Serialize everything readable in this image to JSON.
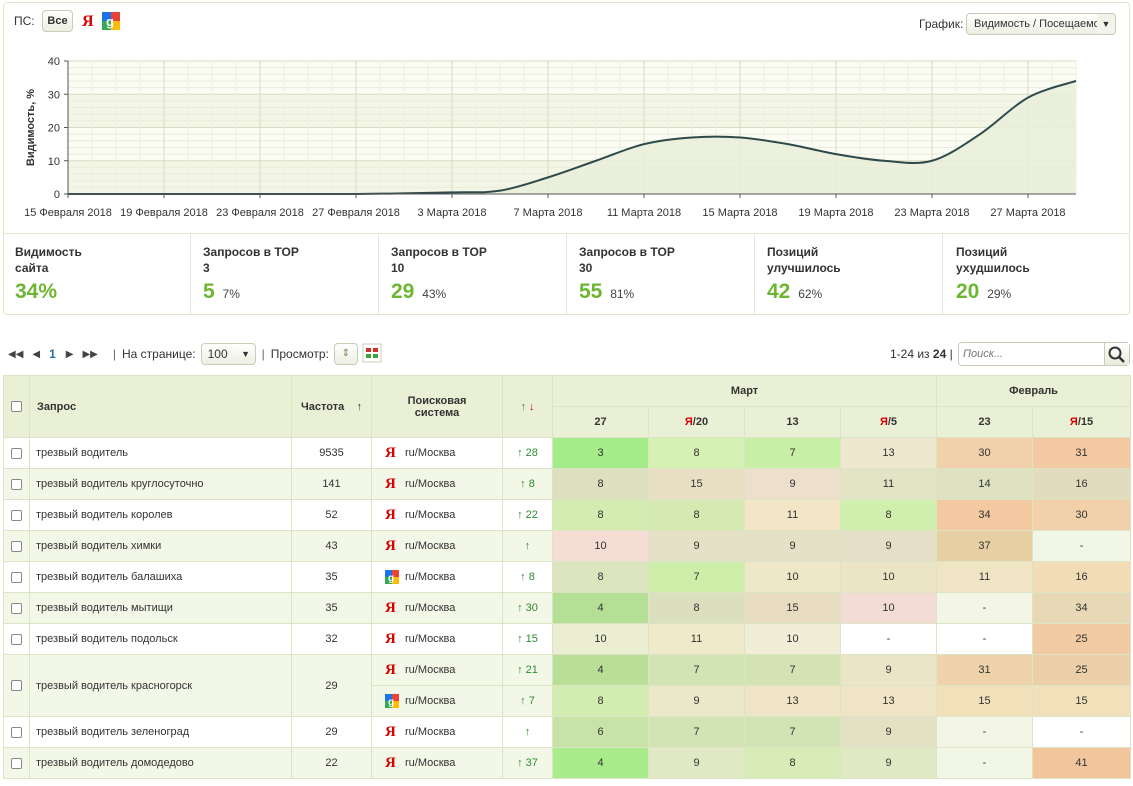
{
  "header": {
    "ps_label": "ПС:",
    "ps_all": "Все",
    "graph_label": "График:",
    "graph_value": "Видимость / Посещаемо"
  },
  "chart_data": {
    "type": "area",
    "ylabel": "Видимость, %",
    "ylim": [
      0,
      40
    ],
    "yticks": [
      "0",
      "10",
      "20",
      "30",
      "40"
    ],
    "xticks": [
      "15 Февраля 2018",
      "19 Февраля 2018",
      "23 Февраля 2018",
      "27 Февраля 2018",
      "3 Марта 2018",
      "7 Марта 2018",
      "11 Марта 2018",
      "15 Марта 2018",
      "19 Марта 2018",
      "23 Марта 2018",
      "27 Марта 2018"
    ],
    "x": [
      0,
      4,
      8,
      12,
      16,
      18,
      20,
      22,
      24,
      26,
      28,
      30,
      32,
      34,
      36,
      38,
      40,
      42
    ],
    "values": [
      0,
      0,
      0,
      0,
      0.5,
      1,
      5,
      10,
      15,
      17,
      17,
      15,
      12,
      10,
      10,
      18,
      29,
      34
    ],
    "line_color": "#2f4a4a",
    "fill_color": "#e9eed9",
    "grid": true
  },
  "stats": [
    {
      "title": "Видимость сайта",
      "value": "34%",
      "pct": ""
    },
    {
      "title": "Запросов в TOP 3",
      "value": "5",
      "pct": "7%"
    },
    {
      "title": "Запросов в TOP 10",
      "value": "29",
      "pct": "43%"
    },
    {
      "title": "Запросов в TOP 30",
      "value": "55",
      "pct": "81%"
    },
    {
      "title": "Позиций улучшилось",
      "value": "42",
      "pct": "62%"
    },
    {
      "title": "Позиций ухудшилось",
      "value": "20",
      "pct": "29%"
    }
  ],
  "pager": {
    "page": "1",
    "per_page_label": "На странице:",
    "per_page": "100",
    "view_label": "Просмотр:",
    "count_range": "1-24 из ",
    "count_total": "24",
    "search_placeholder": "Поиск..."
  },
  "table": {
    "col_query": "Запрос",
    "col_freq": "Частота",
    "col_freq_arrow": "↑",
    "col_engine_1": "Поисковая",
    "col_engine_2": "система",
    "col_delta_up": "↑",
    "col_delta_down": "↓",
    "month_1": "Март",
    "month_2": "Февраль",
    "dates": [
      {
        "y": "",
        "d": "27"
      },
      {
        "y": "Я",
        "d": "/20"
      },
      {
        "y": "",
        "d": "13"
      },
      {
        "y": "Я",
        "d": "/5"
      },
      {
        "y": "",
        "d": "23"
      },
      {
        "y": "Я",
        "d": "/15"
      }
    ],
    "rows": [
      {
        "query": "трезвый водитель",
        "freq": "9535",
        "engines": [
          {
            "icon": "yandex",
            "region": "ru/Москва",
            "delta": "↑ 28",
            "pos": [
              "3",
              "8",
              "7",
              "13",
              "30",
              "31"
            ],
            "colors": [
              "#a4ec8a",
              "#d5f1b4",
              "#c8efa6",
              "#eee8cf",
              "#f2d0a9",
              "#f2c9a1"
            ]
          }
        ]
      },
      {
        "query": "трезвый водитель круглосуточно",
        "freq": "141",
        "engines": [
          {
            "icon": "yandex",
            "region": "ru/Москва",
            "delta": "↑ 8",
            "pos": [
              "8",
              "15",
              "9",
              "11",
              "14",
              "16"
            ],
            "colors": [
              "#dddfbf",
              "#e8dfc5",
              "#ece0cc",
              "#e3e3c6",
              "#dee2c2",
              "#e2dbbd"
            ]
          }
        ]
      },
      {
        "query": "трезвый водитель королев",
        "freq": "52",
        "engines": [
          {
            "icon": "yandex",
            "region": "ru/Москва",
            "delta": "↑ 22",
            "pos": [
              "8",
              "8",
              "11",
              "8",
              "34",
              "30"
            ],
            "colors": [
              "#d5ecb0",
              "#d5eab0",
              "#f2e6c7",
              "#d2f0ad",
              "#f2c9a1",
              "#f2d0a9"
            ]
          }
        ]
      },
      {
        "query": "трезвый водитель химки",
        "freq": "43",
        "engines": [
          {
            "icon": "yandex",
            "region": "ru/Москва",
            "delta": "↑",
            "pos": [
              "10",
              "9",
              "9",
              "9",
              "37",
              "-"
            ],
            "colors": [
              "#f5dcd5",
              "#e5e1c6",
              "#e5e1c6",
              "#e6dfc8",
              "#e6cfa3",
              "#f1f6e6"
            ]
          }
        ]
      },
      {
        "query": "трезвый водитель балашиха",
        "freq": "35",
        "engines": [
          {
            "icon": "google",
            "region": "ru/Москва",
            "delta": "↑ 8",
            "pos": [
              "8",
              "7",
              "10",
              "10",
              "11",
              "16"
            ],
            "colors": [
              "#dce5bd",
              "#cdeea8",
              "#eee7c8",
              "#ece5c5",
              "#efe4c3",
              "#f2ddb6"
            ]
          }
        ]
      },
      {
        "query": "трезвый водитель мытищи",
        "freq": "35",
        "engines": [
          {
            "icon": "yandex",
            "region": "ru/Москва",
            "delta": "↑ 30",
            "pos": [
              "4",
              "8",
              "15",
              "10",
              "-",
              "34"
            ],
            "colors": [
              "#b6df96",
              "#dcdfbd",
              "#e7dbc0",
              "#f3dcd6",
              "#f3f6e6",
              "#e8d8b5"
            ]
          }
        ]
      },
      {
        "query": "трезвый водитель подольск",
        "freq": "32",
        "engines": [
          {
            "icon": "yandex",
            "region": "ru/Москва",
            "delta": "↑ 15",
            "pos": [
              "10",
              "11",
              "10",
              "-",
              "-",
              "25"
            ],
            "colors": [
              "#eceed2",
              "#efeac9",
              "#f0eed6",
              "#ffffff",
              "#ffffff",
              "#f2cba2"
            ]
          }
        ]
      },
      {
        "query": "трезвый водитель красногорск",
        "freq": "29",
        "engines": [
          {
            "icon": "yandex",
            "region": "ru/Москва",
            "delta": "↑ 21",
            "pos": [
              "4",
              "7",
              "7",
              "9",
              "31",
              "25"
            ],
            "colors": [
              "#b9df97",
              "#d2e4b3",
              "#d4e3b4",
              "#ebe4c7",
              "#eed2a9",
              "#eacfa8"
            ]
          },
          {
            "icon": "google",
            "region": "ru/Москва",
            "delta": "↑ 7",
            "pos": [
              "8",
              "9",
              "13",
              "13",
              "15",
              "15"
            ],
            "colors": [
              "#d3ecaf",
              "#ebe7c9",
              "#efe4c5",
              "#efe4c5",
              "#f2e0bb",
              "#f2e0bb"
            ]
          }
        ]
      },
      {
        "query": "трезвый водитель зеленоград",
        "freq": "29",
        "engines": [
          {
            "icon": "yandex",
            "region": "ru/Москва",
            "delta": "↑",
            "pos": [
              "6",
              "7",
              "7",
              "9",
              "-",
              "-"
            ],
            "colors": [
              "#c9e2a8",
              "#d2e4b3",
              "#d2e4b3",
              "#e3e1c4",
              "#f3f6e6",
              "#ffffff"
            ]
          }
        ]
      },
      {
        "query": "трезвый водитель домодедово",
        "freq": "22",
        "engines": [
          {
            "icon": "yandex",
            "region": "ru/Москва",
            "delta": "↑ 37",
            "pos": [
              "4",
              "9",
              "8",
              "9",
              "-",
              "41"
            ],
            "colors": [
              "#a8ec8c",
              "#e0e8c4",
              "#d7ecb6",
              "#e0e8c4",
              "#f1f6e6",
              "#f2c59c"
            ]
          }
        ]
      }
    ]
  }
}
